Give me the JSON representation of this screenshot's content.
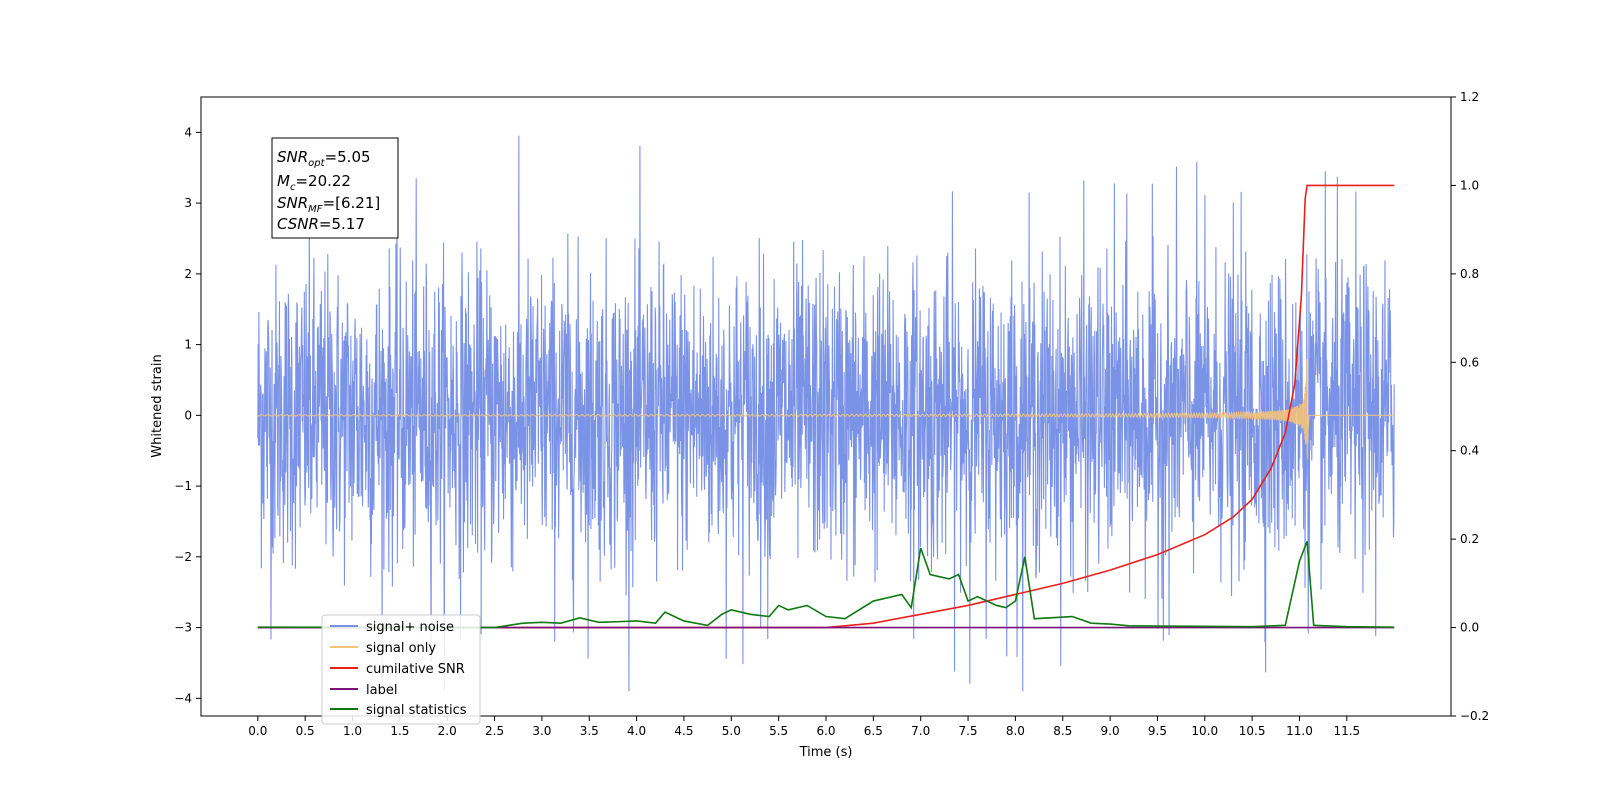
{
  "chart_data": {
    "type": "line",
    "xlabel": "Time (s)",
    "ylabel": "Whitened strain",
    "xlim": [
      -0.6,
      12.6
    ],
    "ylim": [
      -4.25,
      4.5
    ],
    "y2lim": [
      -0.2,
      1.2
    ],
    "xticks": [
      "0.0",
      "0.5",
      "1.0",
      "1.5",
      "2.0",
      "2.5",
      "3.0",
      "3.5",
      "4.0",
      "4.5",
      "5.0",
      "5.5",
      "6.0",
      "6.5",
      "7.0",
      "7.5",
      "8.0",
      "8.5",
      "9.0",
      "9.5",
      "10.0",
      "10.5",
      "11.0",
      "11.5"
    ],
    "yticks": [
      -4,
      -3,
      -2,
      -1,
      0,
      1,
      2,
      3,
      4
    ],
    "y2ticks": [
      -0.2,
      0.0,
      0.2,
      0.4,
      0.6,
      0.8,
      1.0,
      1.2
    ],
    "annotation": {
      "snr_opt": {
        "base": "SNR",
        "sub": "opt",
        "value": "=5.05"
      },
      "mc": {
        "base": "M",
        "sub": "c",
        "value": "=20.22"
      },
      "snr_mf": {
        "base": "SNR",
        "sub": "MF",
        "value": "=[6.21]"
      },
      "csnr": {
        "base": "CSNR",
        "sub": "",
        "value": "=5.17"
      }
    },
    "series": [
      {
        "name": "signal+ noise",
        "color": "#7b93e6",
        "axis": "left",
        "duration": [
          0.0,
          12.0
        ],
        "envelope_typical": 1.4,
        "envelope_peak": 4.1
      },
      {
        "name": "signal only",
        "color": "#f5c37a",
        "axis": "left",
        "merger_time": 11.08,
        "peak_amplitude": 1.0
      },
      {
        "name": "cumilative SNR",
        "color": "#e8211c",
        "axis": "right",
        "points": [
          [
            0.0,
            0.0
          ],
          [
            6.0,
            0.0
          ],
          [
            6.5,
            0.01
          ],
          [
            7.0,
            0.03
          ],
          [
            7.5,
            0.05
          ],
          [
            8.0,
            0.075
          ],
          [
            8.5,
            0.1
          ],
          [
            9.0,
            0.13
          ],
          [
            9.5,
            0.165
          ],
          [
            10.0,
            0.21
          ],
          [
            10.3,
            0.25
          ],
          [
            10.5,
            0.29
          ],
          [
            10.7,
            0.36
          ],
          [
            10.85,
            0.44
          ],
          [
            10.95,
            0.55
          ],
          [
            11.02,
            0.75
          ],
          [
            11.06,
            0.97
          ],
          [
            11.08,
            1.0
          ],
          [
            12.0,
            1.0
          ]
        ]
      },
      {
        "name": "label",
        "color": "#7a0f7a",
        "axis": "right",
        "points": [
          [
            0.0,
            0.0
          ],
          [
            12.0,
            0.0
          ]
        ]
      },
      {
        "name": "signal statistics",
        "color": "#0f7a0f",
        "axis": "right",
        "points": [
          [
            0.0,
            0.001
          ],
          [
            2.5,
            0.0
          ],
          [
            2.8,
            0.01
          ],
          [
            3.0,
            0.012
          ],
          [
            3.2,
            0.01
          ],
          [
            3.4,
            0.022
          ],
          [
            3.6,
            0.012
          ],
          [
            3.9,
            0.014
          ],
          [
            4.0,
            0.015
          ],
          [
            4.2,
            0.01
          ],
          [
            4.3,
            0.035
          ],
          [
            4.5,
            0.015
          ],
          [
            4.75,
            0.005
          ],
          [
            4.9,
            0.03
          ],
          [
            5.0,
            0.04
          ],
          [
            5.2,
            0.03
          ],
          [
            5.4,
            0.025
          ],
          [
            5.5,
            0.05
          ],
          [
            5.6,
            0.04
          ],
          [
            5.8,
            0.05
          ],
          [
            6.0,
            0.025
          ],
          [
            6.2,
            0.02
          ],
          [
            6.5,
            0.06
          ],
          [
            6.8,
            0.075
          ],
          [
            6.9,
            0.045
          ],
          [
            7.0,
            0.18
          ],
          [
            7.1,
            0.12
          ],
          [
            7.3,
            0.11
          ],
          [
            7.4,
            0.12
          ],
          [
            7.5,
            0.06
          ],
          [
            7.6,
            0.07
          ],
          [
            7.8,
            0.05
          ],
          [
            7.9,
            0.045
          ],
          [
            8.0,
            0.06
          ],
          [
            8.1,
            0.16
          ],
          [
            8.2,
            0.02
          ],
          [
            8.6,
            0.025
          ],
          [
            8.8,
            0.01
          ],
          [
            9.0,
            0.008
          ],
          [
            9.2,
            0.004
          ],
          [
            10.5,
            0.002
          ],
          [
            10.85,
            0.005
          ],
          [
            11.0,
            0.15
          ],
          [
            11.08,
            0.195
          ],
          [
            11.15,
            0.005
          ],
          [
            11.5,
            0.002
          ],
          [
            12.0,
            0.001
          ]
        ]
      }
    ],
    "legend_position": "lower-left",
    "grid": false
  }
}
